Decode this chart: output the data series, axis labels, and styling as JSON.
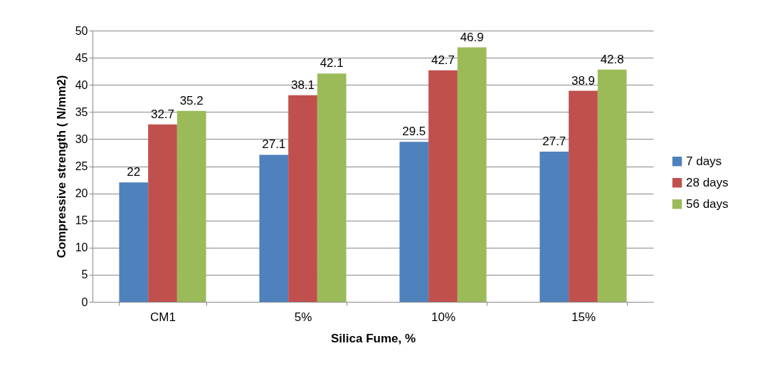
{
  "chart_data": {
    "type": "bar",
    "xlabel": "Silica Fume, %",
    "ylabel": "Compressive strength ( N/mm2)",
    "categories": [
      "CM1",
      "5%",
      "10%",
      "15%"
    ],
    "series": [
      {
        "name": "7 days",
        "color": "#4f81bd",
        "values": [
          22,
          27.1,
          29.5,
          27.7
        ]
      },
      {
        "name": "28 days",
        "color": "#c0504d",
        "values": [
          32.7,
          38.1,
          42.7,
          38.9
        ]
      },
      {
        "name": "56 days",
        "color": "#9bbb59",
        "values": [
          35.2,
          42.1,
          46.9,
          42.8
        ]
      }
    ],
    "ylim": [
      0,
      50
    ],
    "yticks": [
      0,
      5,
      10,
      15,
      20,
      25,
      30,
      35,
      40,
      45,
      50
    ],
    "grid": "y",
    "legend": "right",
    "data_labels": true
  }
}
